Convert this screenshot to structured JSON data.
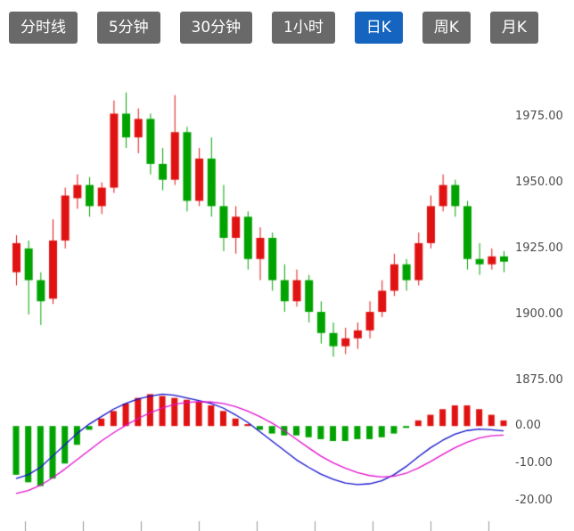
{
  "toolbar": {
    "buttons": [
      {
        "id": "timeshare",
        "label": "分时线",
        "active": false
      },
      {
        "id": "5min",
        "label": "5分钟",
        "active": false
      },
      {
        "id": "30min",
        "label": "30分钟",
        "active": false
      },
      {
        "id": "1hour",
        "label": "1小时",
        "active": false
      },
      {
        "id": "daily-k",
        "label": "日K",
        "active": true
      },
      {
        "id": "weekly-k",
        "label": "周K",
        "active": false
      },
      {
        "id": "monthly-k",
        "label": "月K",
        "active": false
      }
    ]
  },
  "colors": {
    "up": "#e01212",
    "down": "#00a300",
    "dif_line": "#1212cc",
    "dea_line": "#e012d0",
    "button_bg": "#696969",
    "button_active_bg": "#1565c0",
    "button_text": "#ffffff",
    "axis_text": "#4d4d4d",
    "tick": "#999999"
  },
  "chart_data": {
    "type": "candlestick",
    "title": "",
    "legend": "none",
    "grid": false,
    "price_axis": {
      "min": 1869,
      "max": 1990,
      "tick_labels": [
        {
          "text": "1975.00",
          "value": 1975
        },
        {
          "text": "1950.00",
          "value": 1950
        },
        {
          "text": "1925.00",
          "value": 1925
        },
        {
          "text": "1900.00",
          "value": 1900
        },
        {
          "text": "1875.00",
          "value": 1875
        }
      ]
    },
    "macd_axis": {
      "min": -23,
      "max": 10.5,
      "tick_labels": [
        {
          "text": "0.00",
          "value": 0
        },
        {
          "text": "-10.00",
          "value": -10
        },
        {
          "text": "-20.00",
          "value": -20
        }
      ]
    },
    "candles": [
      [
        1916,
        1930,
        1911,
        1927
      ],
      [
        1925,
        1928,
        1900,
        1913
      ],
      [
        1913,
        1916,
        1896,
        1905
      ],
      [
        1906,
        1936,
        1904,
        1928
      ],
      [
        1928,
        1948,
        1925,
        1945
      ],
      [
        1944,
        1953,
        1940,
        1949
      ],
      [
        1949,
        1952,
        1937,
        1941
      ],
      [
        1941,
        1950,
        1938,
        1948
      ],
      [
        1948,
        1981,
        1946,
        1976
      ],
      [
        1976,
        1984,
        1963,
        1967
      ],
      [
        1967,
        1978,
        1961,
        1974
      ],
      [
        1974,
        1976,
        1953,
        1957
      ],
      [
        1957,
        1963,
        1947,
        1951
      ],
      [
        1951,
        1983,
        1949,
        1969
      ],
      [
        1969,
        1971,
        1939,
        1943
      ],
      [
        1943,
        1963,
        1941,
        1959
      ],
      [
        1959,
        1967,
        1937,
        1941
      ],
      [
        1941,
        1949,
        1924,
        1929
      ],
      [
        1929,
        1941,
        1923,
        1937
      ],
      [
        1937,
        1939,
        1917,
        1921
      ],
      [
        1921,
        1933,
        1913,
        1929
      ],
      [
        1929,
        1931,
        1909,
        1913
      ],
      [
        1913,
        1919,
        1901,
        1905
      ],
      [
        1905,
        1917,
        1903,
        1913
      ],
      [
        1913,
        1915,
        1897,
        1901
      ],
      [
        1901,
        1905,
        1889,
        1893
      ],
      [
        1893,
        1897,
        1884,
        1888
      ],
      [
        1888,
        1895,
        1885,
        1891
      ],
      [
        1891,
        1897,
        1887,
        1894
      ],
      [
        1894,
        1905,
        1891,
        1901
      ],
      [
        1901,
        1913,
        1899,
        1909
      ],
      [
        1909,
        1923,
        1907,
        1919
      ],
      [
        1919,
        1921,
        1909,
        1913
      ],
      [
        1913,
        1931,
        1911,
        1927
      ],
      [
        1927,
        1945,
        1925,
        1941
      ],
      [
        1941,
        1953,
        1939,
        1949
      ],
      [
        1949,
        1951,
        1937,
        1941
      ],
      [
        1941,
        1943,
        1917,
        1921
      ],
      [
        1921,
        1927,
        1915,
        1919
      ],
      [
        1919,
        1925,
        1917,
        1922
      ],
      [
        1922,
        1924,
        1916,
        1920
      ]
    ],
    "macd": {
      "histogram": [
        -13,
        -15,
        -16,
        -14,
        -10,
        -5,
        -1,
        2,
        4,
        6,
        7.5,
        8.5,
        8,
        7.5,
        7,
        6.5,
        5.5,
        4,
        2,
        0.5,
        -1,
        -2,
        -2.5,
        -2.5,
        -3,
        -3.5,
        -4,
        -4,
        -3.5,
        -3.5,
        -3,
        -2,
        -0.5,
        1.5,
        3,
        4.5,
        5.5,
        5.5,
        4.5,
        3,
        1.5
      ],
      "dif": [
        -14,
        -13,
        -11,
        -8,
        -5,
        -2,
        0.5,
        2.5,
        4.5,
        6,
        7.2,
        8,
        8.5,
        8.2,
        7.5,
        6.8,
        6,
        4.8,
        3,
        1,
        -1.5,
        -4,
        -6.5,
        -9,
        -11,
        -12.8,
        -14.2,
        -15.2,
        -15.6,
        -15.4,
        -14.6,
        -13,
        -10.8,
        -8.2,
        -5.8,
        -3.8,
        -2.2,
        -1.2,
        -0.8,
        -1,
        -1.3
      ],
      "dea": [
        -18,
        -17.2,
        -15.8,
        -13.8,
        -11.5,
        -9,
        -6.5,
        -4,
        -1.8,
        0.2,
        2,
        3.5,
        4.8,
        5.8,
        6.3,
        6.5,
        6.4,
        6,
        5.2,
        4,
        2.5,
        0.8,
        -1.2,
        -3.5,
        -5.8,
        -8,
        -9.8,
        -11.2,
        -12.4,
        -13.2,
        -13.6,
        -13.4,
        -12.6,
        -11.2,
        -9.5,
        -7.6,
        -5.8,
        -4.3,
        -3.2,
        -2.6,
        -2.4
      ]
    }
  }
}
